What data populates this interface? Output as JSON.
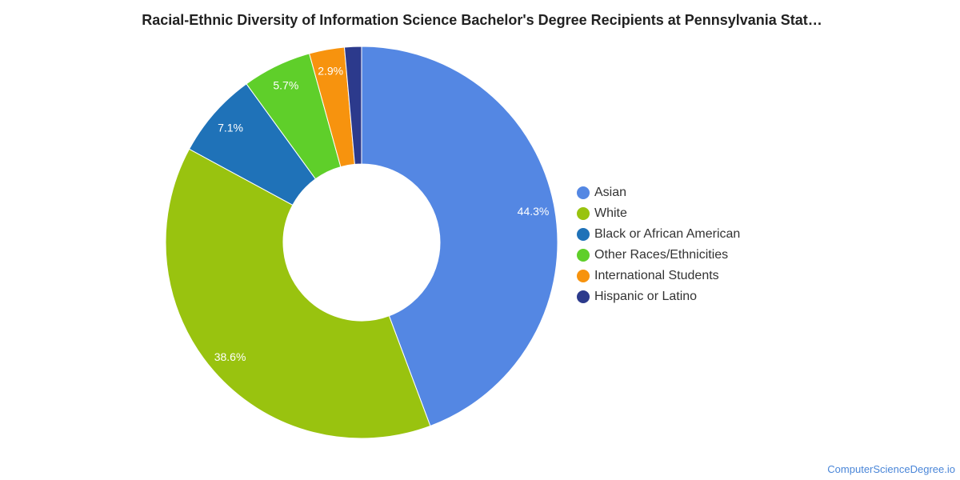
{
  "chart_data": {
    "type": "pie",
    "title": "Racial-Ethnic Diversity of Information Science Bachelor's Degree Recipients at Pennsylvania Stat…",
    "categories": [
      "Asian",
      "White",
      "Black or African American",
      "Other Races/Ethnicities",
      "International Students",
      "Hispanic or Latino"
    ],
    "values": [
      44.3,
      38.6,
      7.1,
      5.7,
      2.9,
      1.4
    ],
    "data_labels": [
      "44.3%",
      "38.6%",
      "7.1%",
      "5.7%",
      "2.9%",
      ""
    ],
    "colors": [
      "#5487e3",
      "#99c30f",
      "#1f72b8",
      "#5fcf2a",
      "#f7930e",
      "#2c3a8c"
    ],
    "legend_position": "right"
  },
  "footer": {
    "source": "ComputerScienceDegree.io"
  }
}
